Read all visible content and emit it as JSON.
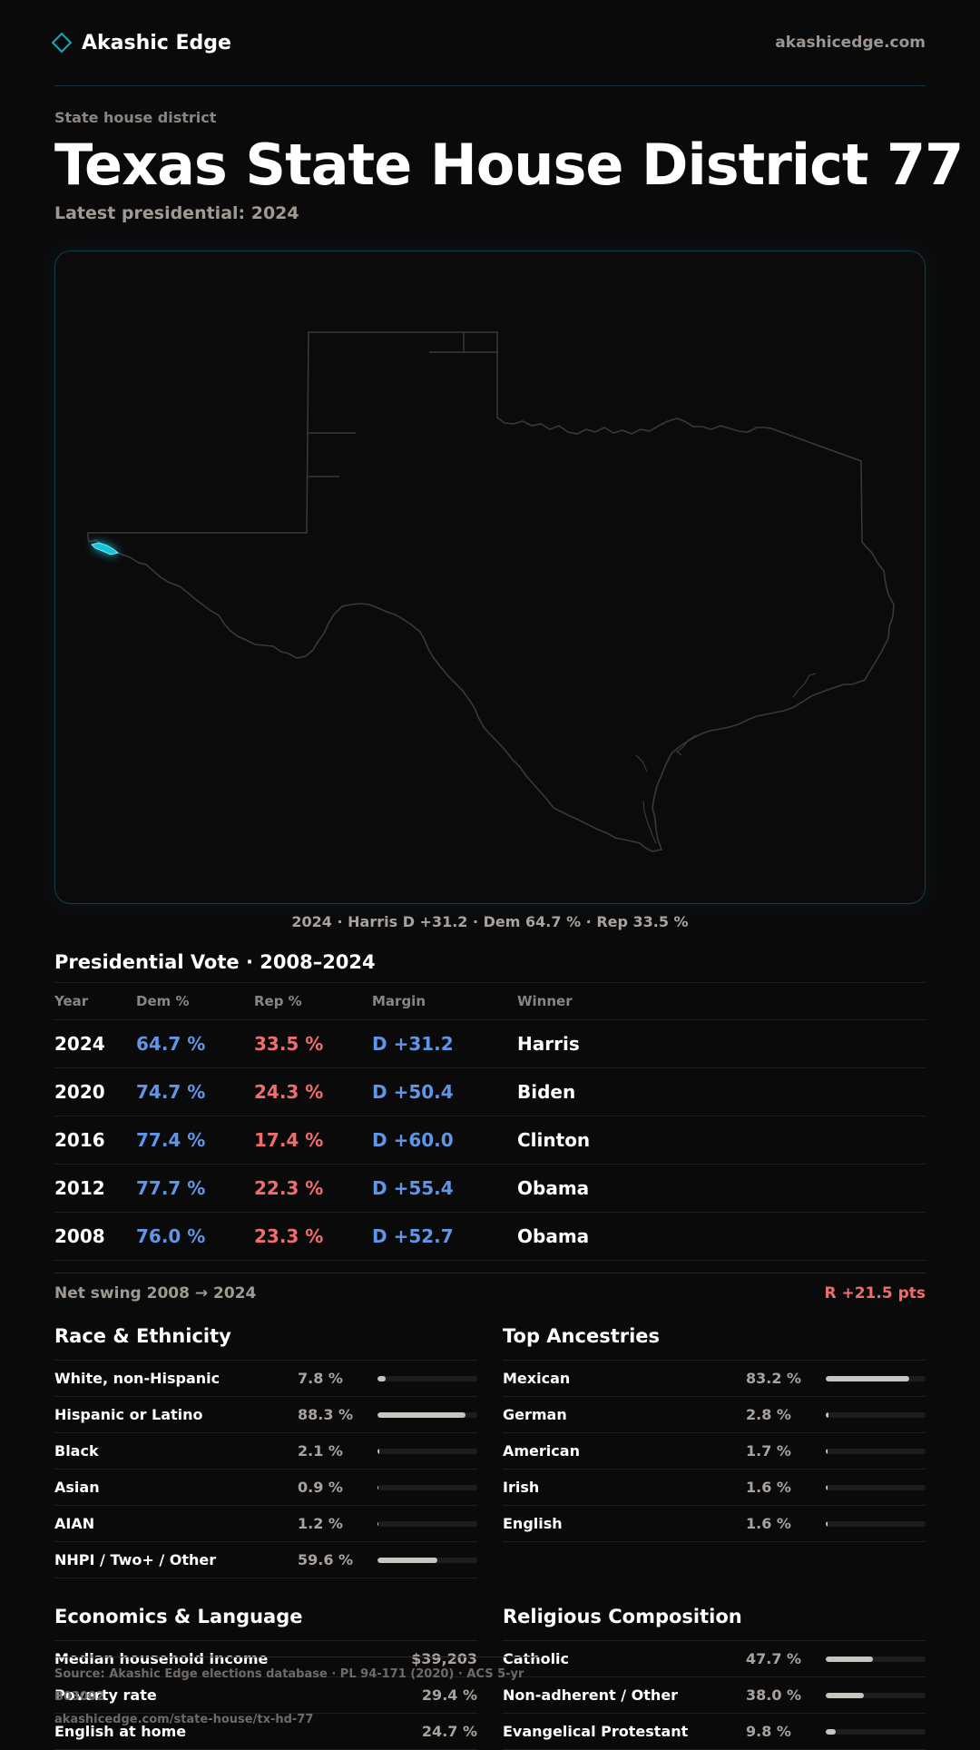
{
  "header": {
    "brand": "Akashic Edge",
    "site": "akashicedge.com"
  },
  "page": {
    "kicker": "State house district",
    "title": "Texas  State House District 77",
    "subtitle": "Latest presidential: 2024"
  },
  "map": {
    "caption": "2024 · Harris D +31.2 · Dem 64.7 % · Rep 33.5 %",
    "highlight_color": "#16c3dc"
  },
  "presidential": {
    "title": "Presidential Vote · 2008–2024",
    "headers": {
      "year": "Year",
      "dem": "Dem %",
      "rep": "Rep %",
      "margin": "Margin",
      "winner": "Winner"
    },
    "rows": [
      {
        "year": "2024",
        "dem": "64.7 %",
        "rep": "33.5 %",
        "margin": "D +31.2",
        "winner": "Harris"
      },
      {
        "year": "2020",
        "dem": "74.7 %",
        "rep": "24.3 %",
        "margin": "D +50.4",
        "winner": "Biden"
      },
      {
        "year": "2016",
        "dem": "77.4 %",
        "rep": "17.4 %",
        "margin": "D +60.0",
        "winner": "Clinton"
      },
      {
        "year": "2012",
        "dem": "77.7 %",
        "rep": "22.3 %",
        "margin": "D +55.4",
        "winner": "Obama"
      },
      {
        "year": "2008",
        "dem": "76.0 %",
        "rep": "23.3 %",
        "margin": "D +52.7",
        "winner": "Obama"
      }
    ],
    "swing_label": "Net swing 2008 → 2024",
    "swing_value": "R +21.5 pts"
  },
  "race": {
    "title": "Race & Ethnicity",
    "rows": [
      {
        "label": "White, non-Hispanic",
        "value": "7.8 %",
        "pct": 7.8
      },
      {
        "label": "Hispanic or Latino",
        "value": "88.3 %",
        "pct": 88.3
      },
      {
        "label": "Black",
        "value": "2.1 %",
        "pct": 2.1
      },
      {
        "label": "Asian",
        "value": "0.9 %",
        "pct": 0.9
      },
      {
        "label": "AIAN",
        "value": "1.2 %",
        "pct": 1.2
      },
      {
        "label": "NHPI / Two+ / Other",
        "value": "59.6 %",
        "pct": 59.6
      }
    ]
  },
  "ancestry": {
    "title": "Top Ancestries",
    "rows": [
      {
        "label": "Mexican",
        "value": "83.2 %",
        "pct": 83.2
      },
      {
        "label": "German",
        "value": "2.8 %",
        "pct": 2.8
      },
      {
        "label": "American",
        "value": "1.7 %",
        "pct": 1.7
      },
      {
        "label": "Irish",
        "value": "1.6 %",
        "pct": 1.6
      },
      {
        "label": "English",
        "value": "1.6 %",
        "pct": 1.6
      }
    ]
  },
  "economics": {
    "title": "Economics & Language",
    "rows": [
      {
        "label": "Median household income",
        "value": "$39,203"
      },
      {
        "label": "Poverty rate",
        "value": "29.4 %"
      },
      {
        "label": "English at home",
        "value": "24.7 %"
      }
    ]
  },
  "religion": {
    "title": "Religious Composition",
    "rows": [
      {
        "label": "Catholic",
        "value": "47.7 %",
        "pct": 47.7
      },
      {
        "label": "Non-adherent / Other",
        "value": "38.0 %",
        "pct": 38.0
      },
      {
        "label": "Evangelical Protestant",
        "value": "9.8 %",
        "pct": 9.8
      }
    ]
  },
  "footer": {
    "source": "Source: Akashic Edge elections database · PL 94-171 (2020) · ACS 5-yr B03002",
    "url": "akashicedge.com/state-house/tx-hd-77"
  }
}
